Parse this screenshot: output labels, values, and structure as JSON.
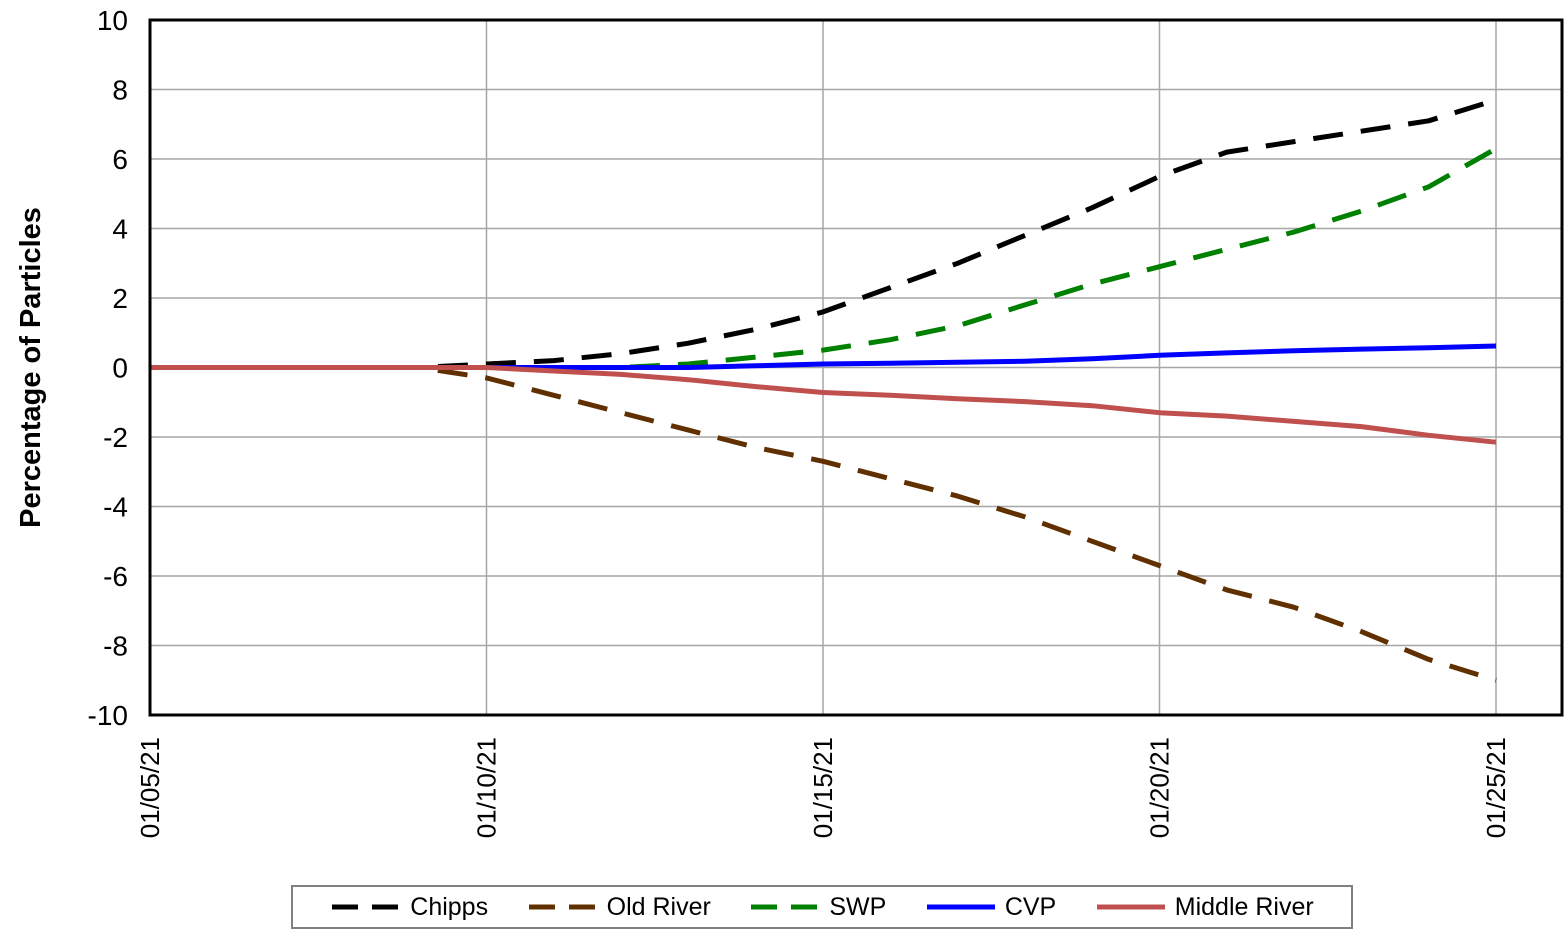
{
  "chart_data": {
    "type": "line",
    "title": "",
    "xlabel": "",
    "ylabel": "Percentage of Particles",
    "ylim": [
      -10,
      10
    ],
    "yticks": [
      10,
      8,
      6,
      4,
      2,
      0,
      -2,
      -4,
      -6,
      -8,
      -10
    ],
    "xlim": [
      "2021-01-05",
      "2021-01-25"
    ],
    "xticks": [
      "01/05/21",
      "01/10/21",
      "01/15/21",
      "01/20/21",
      "01/25/21"
    ],
    "grid": true,
    "legend_position": "bottom",
    "series": [
      {
        "name": "Chipps",
        "color": "#000000",
        "style": "dashed",
        "points": [
          [
            "2021-01-05",
            0
          ],
          [
            "2021-01-09",
            0
          ],
          [
            "2021-01-10",
            0.1
          ],
          [
            "2021-01-11",
            0.2
          ],
          [
            "2021-01-12",
            0.4
          ],
          [
            "2021-01-13",
            0.7
          ],
          [
            "2021-01-14",
            1.1
          ],
          [
            "2021-01-15",
            1.6
          ],
          [
            "2021-01-16",
            2.3
          ],
          [
            "2021-01-17",
            3.0
          ],
          [
            "2021-01-18",
            3.8
          ],
          [
            "2021-01-19",
            4.6
          ],
          [
            "2021-01-20",
            5.5
          ],
          [
            "2021-01-21",
            6.2
          ],
          [
            "2021-01-22",
            6.5
          ],
          [
            "2021-01-23",
            6.8
          ],
          [
            "2021-01-24",
            7.1
          ],
          [
            "2021-01-25",
            7.7
          ]
        ]
      },
      {
        "name": "Old River",
        "color": "#603000",
        "style": "dashed",
        "points": [
          [
            "2021-01-05",
            0
          ],
          [
            "2021-01-09",
            0
          ],
          [
            "2021-01-10",
            -0.3
          ],
          [
            "2021-01-11",
            -0.8
          ],
          [
            "2021-01-12",
            -1.3
          ],
          [
            "2021-01-13",
            -1.8
          ],
          [
            "2021-01-14",
            -2.3
          ],
          [
            "2021-01-15",
            -2.7
          ],
          [
            "2021-01-16",
            -3.2
          ],
          [
            "2021-01-17",
            -3.7
          ],
          [
            "2021-01-18",
            -4.3
          ],
          [
            "2021-01-19",
            -5.0
          ],
          [
            "2021-01-20",
            -5.7
          ],
          [
            "2021-01-21",
            -6.4
          ],
          [
            "2021-01-22",
            -6.9
          ],
          [
            "2021-01-23",
            -7.6
          ],
          [
            "2021-01-24",
            -8.4
          ],
          [
            "2021-01-25",
            -9.0
          ]
        ]
      },
      {
        "name": "SWP",
        "color": "#008000",
        "style": "dashed",
        "points": [
          [
            "2021-01-05",
            0
          ],
          [
            "2021-01-10",
            0
          ],
          [
            "2021-01-11",
            0
          ],
          [
            "2021-01-12",
            0
          ],
          [
            "2021-01-13",
            0.1
          ],
          [
            "2021-01-14",
            0.3
          ],
          [
            "2021-01-15",
            0.5
          ],
          [
            "2021-01-16",
            0.8
          ],
          [
            "2021-01-17",
            1.2
          ],
          [
            "2021-01-18",
            1.8
          ],
          [
            "2021-01-19",
            2.4
          ],
          [
            "2021-01-20",
            2.9
          ],
          [
            "2021-01-21",
            3.4
          ],
          [
            "2021-01-22",
            3.9
          ],
          [
            "2021-01-23",
            4.5
          ],
          [
            "2021-01-24",
            5.2
          ],
          [
            "2021-01-25",
            6.3
          ]
        ]
      },
      {
        "name": "CVP",
        "color": "#0000FF",
        "style": "solid",
        "points": [
          [
            "2021-01-05",
            0
          ],
          [
            "2021-01-10",
            0
          ],
          [
            "2021-01-12",
            0
          ],
          [
            "2021-01-13",
            0
          ],
          [
            "2021-01-14",
            0.05
          ],
          [
            "2021-01-15",
            0.1
          ],
          [
            "2021-01-16",
            0.12
          ],
          [
            "2021-01-17",
            0.15
          ],
          [
            "2021-01-18",
            0.18
          ],
          [
            "2021-01-19",
            0.25
          ],
          [
            "2021-01-20",
            0.35
          ],
          [
            "2021-01-21",
            0.42
          ],
          [
            "2021-01-22",
            0.48
          ],
          [
            "2021-01-23",
            0.53
          ],
          [
            "2021-01-24",
            0.57
          ],
          [
            "2021-01-25",
            0.62
          ]
        ]
      },
      {
        "name": "Middle River",
        "color": "#C0504D",
        "style": "solid",
        "points": [
          [
            "2021-01-05",
            0
          ],
          [
            "2021-01-10",
            0
          ],
          [
            "2021-01-11",
            -0.1
          ],
          [
            "2021-01-12",
            -0.2
          ],
          [
            "2021-01-13",
            -0.35
          ],
          [
            "2021-01-14",
            -0.55
          ],
          [
            "2021-01-15",
            -0.72
          ],
          [
            "2021-01-16",
            -0.8
          ],
          [
            "2021-01-17",
            -0.9
          ],
          [
            "2021-01-18",
            -0.98
          ],
          [
            "2021-01-19",
            -1.1
          ],
          [
            "2021-01-20",
            -1.3
          ],
          [
            "2021-01-21",
            -1.4
          ],
          [
            "2021-01-22",
            -1.55
          ],
          [
            "2021-01-23",
            -1.7
          ],
          [
            "2021-01-24",
            -1.95
          ],
          [
            "2021-01-25",
            -2.15
          ]
        ]
      }
    ]
  }
}
